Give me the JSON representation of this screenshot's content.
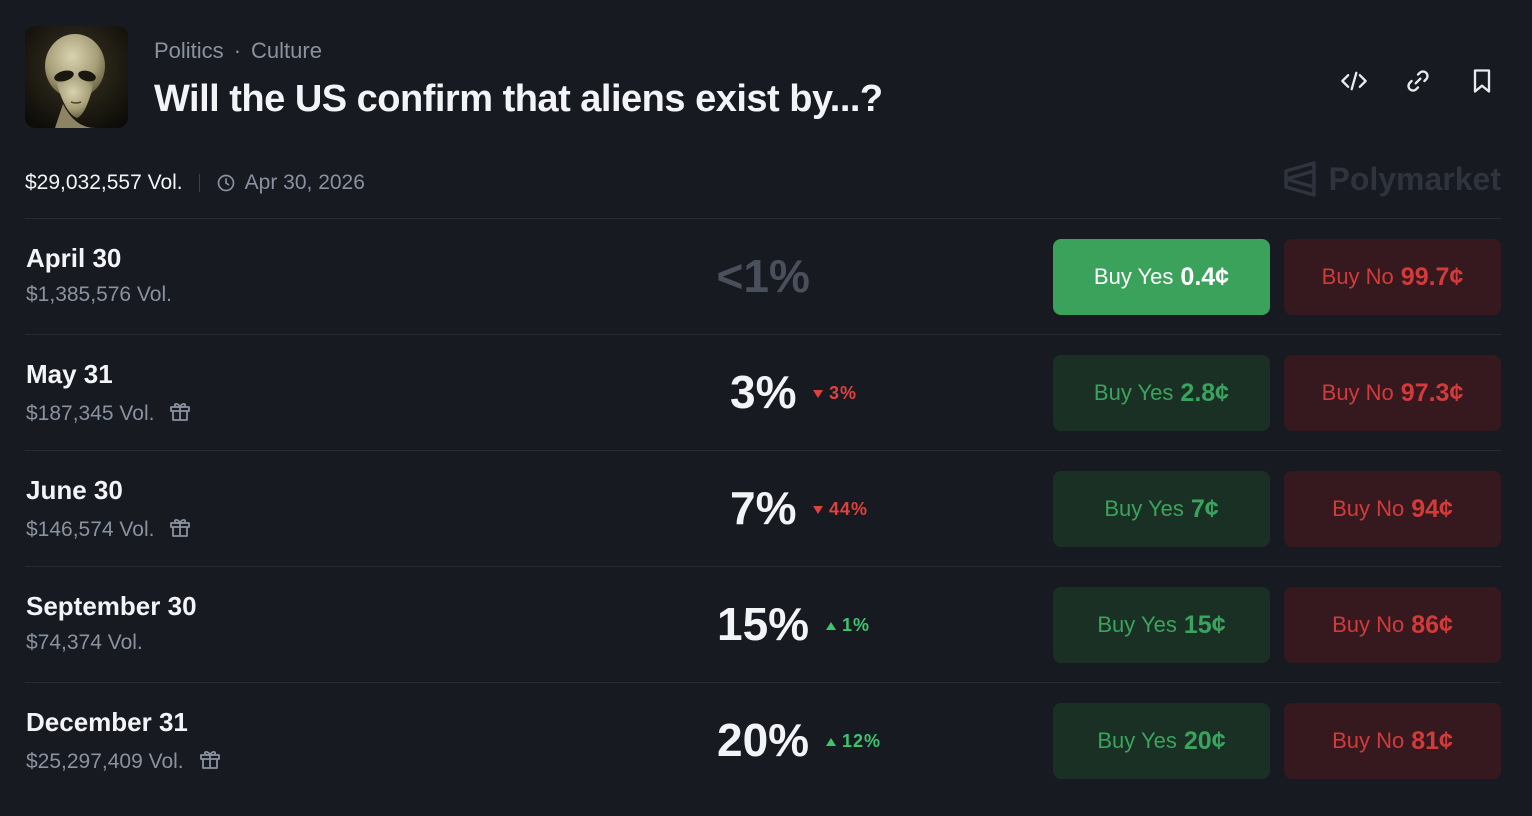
{
  "header": {
    "breadcrumbs": [
      "Politics",
      "Culture"
    ],
    "breadcrumb_separator": "·",
    "title": "Will the US confirm that aliens exist by...?",
    "thumbnail": "alien-image",
    "actions": [
      "embed-icon",
      "link-icon",
      "bookmark-icon"
    ]
  },
  "meta": {
    "volume": "$29,032,557 Vol.",
    "end_date": "Apr 30, 2026",
    "brand": "Polymarket"
  },
  "colors": {
    "background": "#171a20",
    "yes_text": "#3aa35e",
    "yes_bg": "#1b3024",
    "yes_active_bg": "#3ba25b",
    "no_text": "#d33a3a",
    "no_bg": "#36191e",
    "delta_up": "#3fc46e",
    "delta_down": "#e0413f"
  },
  "markets": [
    {
      "label": "April 30",
      "volume": "$1,385,576 Vol.",
      "gift": false,
      "percent": "<1%",
      "dim": true,
      "delta": null,
      "delta_dir": null,
      "yes_label": "Buy Yes",
      "yes_price": "0.4¢",
      "no_label": "Buy No",
      "no_price": "99.7¢",
      "yes_active": true
    },
    {
      "label": "May 31",
      "volume": "$187,345 Vol.",
      "gift": true,
      "percent": "3%",
      "dim": false,
      "delta": "3%",
      "delta_dir": "down",
      "yes_label": "Buy Yes",
      "yes_price": "2.8¢",
      "no_label": "Buy No",
      "no_price": "97.3¢",
      "yes_active": false
    },
    {
      "label": "June 30",
      "volume": "$146,574 Vol.",
      "gift": true,
      "percent": "7%",
      "dim": false,
      "delta": "44%",
      "delta_dir": "down",
      "yes_label": "Buy Yes",
      "yes_price": "7¢",
      "no_label": "Buy No",
      "no_price": "94¢",
      "yes_active": false
    },
    {
      "label": "September 30",
      "volume": "$74,374 Vol.",
      "gift": false,
      "percent": "15%",
      "dim": false,
      "delta": "1%",
      "delta_dir": "up",
      "yes_label": "Buy Yes",
      "yes_price": "15¢",
      "no_label": "Buy No",
      "no_price": "86¢",
      "yes_active": false
    },
    {
      "label": "December 31",
      "volume": "$25,297,409 Vol.",
      "gift": true,
      "percent": "20%",
      "dim": false,
      "delta": "12%",
      "delta_dir": "up",
      "yes_label": "Buy Yes",
      "yes_price": "20¢",
      "no_label": "Buy No",
      "no_price": "81¢",
      "yes_active": false
    }
  ]
}
